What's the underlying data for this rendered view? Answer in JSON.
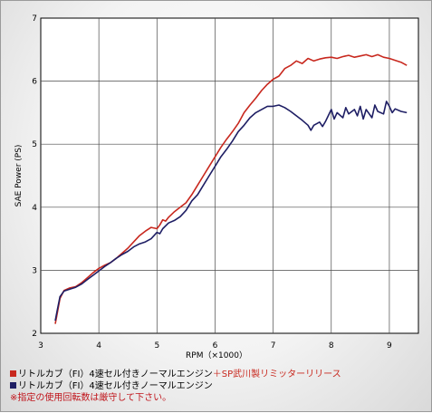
{
  "chart_data": {
    "type": "line",
    "title": "",
    "xlabel": "RPM（×1000）",
    "ylabel": "SAE Power (PS)",
    "xlim": [
      3,
      9.5
    ],
    "ylim": [
      2,
      7
    ],
    "x_ticks": [
      3,
      4,
      5,
      6,
      7,
      8,
      9
    ],
    "y_ticks": [
      2,
      3,
      4,
      5,
      6,
      7
    ],
    "grid": true,
    "legend_position": "bottom",
    "series": [
      {
        "name": "リトルカブ（FI）4速セル付きノーマルエンジン＋SP武川製リミッターリリース",
        "color": "#c8281e",
        "points": [
          [
            3.25,
            2.15
          ],
          [
            3.28,
            2.3
          ],
          [
            3.33,
            2.55
          ],
          [
            3.4,
            2.68
          ],
          [
            3.5,
            2.72
          ],
          [
            3.6,
            2.74
          ],
          [
            3.7,
            2.8
          ],
          [
            3.8,
            2.88
          ],
          [
            3.9,
            2.96
          ],
          [
            4.0,
            3.03
          ],
          [
            4.1,
            3.08
          ],
          [
            4.2,
            3.12
          ],
          [
            4.3,
            3.19
          ],
          [
            4.4,
            3.27
          ],
          [
            4.5,
            3.35
          ],
          [
            4.6,
            3.45
          ],
          [
            4.7,
            3.55
          ],
          [
            4.8,
            3.62
          ],
          [
            4.9,
            3.68
          ],
          [
            5.0,
            3.66
          ],
          [
            5.05,
            3.72
          ],
          [
            5.1,
            3.8
          ],
          [
            5.15,
            3.78
          ],
          [
            5.2,
            3.84
          ],
          [
            5.3,
            3.93
          ],
          [
            5.4,
            4.0
          ],
          [
            5.5,
            4.07
          ],
          [
            5.6,
            4.2
          ],
          [
            5.7,
            4.35
          ],
          [
            5.8,
            4.5
          ],
          [
            5.9,
            4.65
          ],
          [
            6.0,
            4.8
          ],
          [
            6.1,
            4.95
          ],
          [
            6.2,
            5.08
          ],
          [
            6.3,
            5.2
          ],
          [
            6.4,
            5.33
          ],
          [
            6.5,
            5.5
          ],
          [
            6.6,
            5.62
          ],
          [
            6.7,
            5.73
          ],
          [
            6.8,
            5.85
          ],
          [
            6.9,
            5.95
          ],
          [
            7.0,
            6.03
          ],
          [
            7.1,
            6.08
          ],
          [
            7.2,
            6.2
          ],
          [
            7.3,
            6.25
          ],
          [
            7.4,
            6.32
          ],
          [
            7.5,
            6.28
          ],
          [
            7.6,
            6.36
          ],
          [
            7.7,
            6.32
          ],
          [
            7.8,
            6.35
          ],
          [
            7.9,
            6.37
          ],
          [
            8.0,
            6.38
          ],
          [
            8.1,
            6.36
          ],
          [
            8.2,
            6.39
          ],
          [
            8.3,
            6.41
          ],
          [
            8.4,
            6.38
          ],
          [
            8.5,
            6.4
          ],
          [
            8.6,
            6.42
          ],
          [
            8.7,
            6.39
          ],
          [
            8.8,
            6.42
          ],
          [
            8.9,
            6.38
          ],
          [
            9.0,
            6.36
          ],
          [
            9.1,
            6.33
          ],
          [
            9.2,
            6.3
          ],
          [
            9.3,
            6.25
          ]
        ]
      },
      {
        "name": "リトルカブ（FI）4速セル付きノーマルエンジン",
        "color": "#1e1e64",
        "points": [
          [
            3.25,
            2.2
          ],
          [
            3.28,
            2.35
          ],
          [
            3.33,
            2.58
          ],
          [
            3.4,
            2.67
          ],
          [
            3.5,
            2.7
          ],
          [
            3.6,
            2.73
          ],
          [
            3.7,
            2.78
          ],
          [
            3.8,
            2.85
          ],
          [
            3.9,
            2.92
          ],
          [
            4.0,
            2.99
          ],
          [
            4.1,
            3.06
          ],
          [
            4.2,
            3.12
          ],
          [
            4.3,
            3.19
          ],
          [
            4.4,
            3.25
          ],
          [
            4.5,
            3.3
          ],
          [
            4.6,
            3.37
          ],
          [
            4.7,
            3.42
          ],
          [
            4.8,
            3.45
          ],
          [
            4.9,
            3.5
          ],
          [
            5.0,
            3.6
          ],
          [
            5.05,
            3.58
          ],
          [
            5.1,
            3.66
          ],
          [
            5.2,
            3.75
          ],
          [
            5.3,
            3.79
          ],
          [
            5.4,
            3.85
          ],
          [
            5.5,
            3.95
          ],
          [
            5.6,
            4.1
          ],
          [
            5.7,
            4.2
          ],
          [
            5.8,
            4.35
          ],
          [
            5.9,
            4.5
          ],
          [
            6.0,
            4.65
          ],
          [
            6.1,
            4.8
          ],
          [
            6.2,
            4.92
          ],
          [
            6.3,
            5.05
          ],
          [
            6.4,
            5.2
          ],
          [
            6.5,
            5.3
          ],
          [
            6.6,
            5.42
          ],
          [
            6.7,
            5.5
          ],
          [
            6.8,
            5.55
          ],
          [
            6.9,
            5.6
          ],
          [
            7.0,
            5.6
          ],
          [
            7.1,
            5.62
          ],
          [
            7.2,
            5.58
          ],
          [
            7.3,
            5.52
          ],
          [
            7.4,
            5.45
          ],
          [
            7.5,
            5.38
          ],
          [
            7.6,
            5.3
          ],
          [
            7.65,
            5.22
          ],
          [
            7.7,
            5.3
          ],
          [
            7.8,
            5.35
          ],
          [
            7.85,
            5.28
          ],
          [
            7.9,
            5.36
          ],
          [
            8.0,
            5.55
          ],
          [
            8.05,
            5.4
          ],
          [
            8.1,
            5.5
          ],
          [
            8.2,
            5.42
          ],
          [
            8.25,
            5.58
          ],
          [
            8.3,
            5.48
          ],
          [
            8.4,
            5.55
          ],
          [
            8.45,
            5.45
          ],
          [
            8.5,
            5.6
          ],
          [
            8.55,
            5.4
          ],
          [
            8.6,
            5.55
          ],
          [
            8.7,
            5.42
          ],
          [
            8.75,
            5.62
          ],
          [
            8.8,
            5.52
          ],
          [
            8.9,
            5.48
          ],
          [
            8.95,
            5.68
          ],
          [
            9.0,
            5.6
          ],
          [
            9.05,
            5.5
          ],
          [
            9.1,
            5.56
          ],
          [
            9.2,
            5.52
          ],
          [
            9.3,
            5.5
          ]
        ]
      }
    ],
    "note": "※指定の使用回転数は厳守して下さい。"
  }
}
